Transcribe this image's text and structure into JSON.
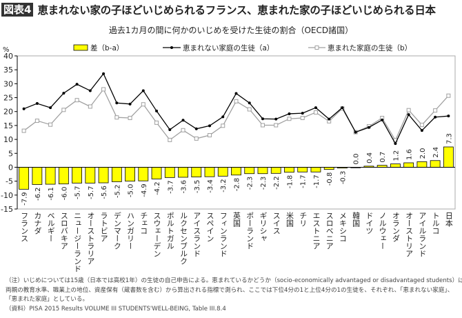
{
  "header": {
    "badge": "図表4",
    "title": "恵まれない家の子ほどいじめられるフランス、恵まれた家の子ほどいじめられる日本"
  },
  "chart_data": {
    "type": "bar+line",
    "title": "過去1カ月の間に何かのいじめを受けた生徒の割合（OECD諸国）",
    "ylabel": "%",
    "ylim": [
      -15,
      40
    ],
    "yticks": [
      -15,
      -10,
      -5,
      0,
      5,
      10,
      15,
      20,
      25,
      30,
      35,
      40
    ],
    "grid": false,
    "legend_position": "top",
    "categories": [
      "フランス",
      "カナダ",
      "ベルギー",
      "スロバキア",
      "ニュージーランド",
      "オーストラリア",
      "ラトビア",
      "デンマーク",
      "ハンガリー",
      "チェコ",
      "スウェーデン",
      "ポルトガル",
      "ルクセンブルク",
      "アイスランド",
      "スペイン",
      "フィンランド",
      "英国",
      "ポーランド",
      "ギリシャ",
      "スイス",
      "米国",
      "チリ",
      "エストニア",
      "スロベニア",
      "メキシコ",
      "韓国",
      "ドイツ",
      "ノルウェー",
      "オランダ",
      "オーストリア",
      "アイルランド",
      "トルコ",
      "日本"
    ],
    "series": [
      {
        "name": "差（b-a）",
        "type": "bar",
        "color": "#ffff00",
        "values": [
          -7.9,
          -6.2,
          -6.1,
          -6.0,
          -5.7,
          -5.7,
          -5.6,
          -5.2,
          -5.0,
          -4.9,
          -4.2,
          -3.7,
          -3.6,
          -3.5,
          -3.4,
          -3.2,
          -2.8,
          -2.3,
          -2.3,
          -2.2,
          -1.8,
          -1.7,
          -1.7,
          -0.8,
          -0.3,
          0.0,
          0.4,
          0.7,
          1.2,
          1.6,
          2.0,
          2.4,
          7.3
        ]
      },
      {
        "name": "恵まれない家庭の生徒（a）",
        "type": "line",
        "color": "#000000",
        "values": [
          21.0,
          22.9,
          21.4,
          26.6,
          29.8,
          27.5,
          33.6,
          23.1,
          22.7,
          27.5,
          20.2,
          13.5,
          16.9,
          13.8,
          14.9,
          18.1,
          26.5,
          23.1,
          17.4,
          17.3,
          19.2,
          19.4,
          21.4,
          17.3,
          21.4,
          12.6,
          14.3,
          17.0,
          8.5,
          18.9,
          13.2,
          18.0,
          18.4
        ]
      },
      {
        "name": "恵まれた家庭の生徒（b）",
        "type": "line",
        "color": "#a0a0a0",
        "values": [
          13.1,
          16.7,
          15.3,
          20.6,
          24.1,
          21.8,
          28.0,
          17.9,
          17.7,
          22.6,
          16.0,
          9.8,
          13.3,
          10.3,
          11.5,
          14.9,
          23.7,
          20.8,
          15.1,
          15.1,
          17.4,
          17.7,
          19.7,
          16.5,
          21.1,
          12.6,
          14.7,
          17.7,
          9.7,
          20.5,
          15.2,
          20.4,
          25.7
        ]
      }
    ]
  },
  "notes": {
    "line1": "（注）いじめについては15歳（日本では高校1年）の生徒の自己申告による。恵まれているかどうか（socio-economically advantaged or disadvantaged students）は、",
    "line2": "両親の教育水準、職業上の地位、資産保有（蔵書数を含む）から算出される指標で測られ、ここでは下位4分の1と上位4分の1の生徒を、それぞれ、「恵まれない家庭」、",
    "line3": "「恵まれた家庭」としている。",
    "source": "（資料）PISA 2015 Results VOLUME III STUDENTS'WELL-BEING, Table III.8.4"
  }
}
